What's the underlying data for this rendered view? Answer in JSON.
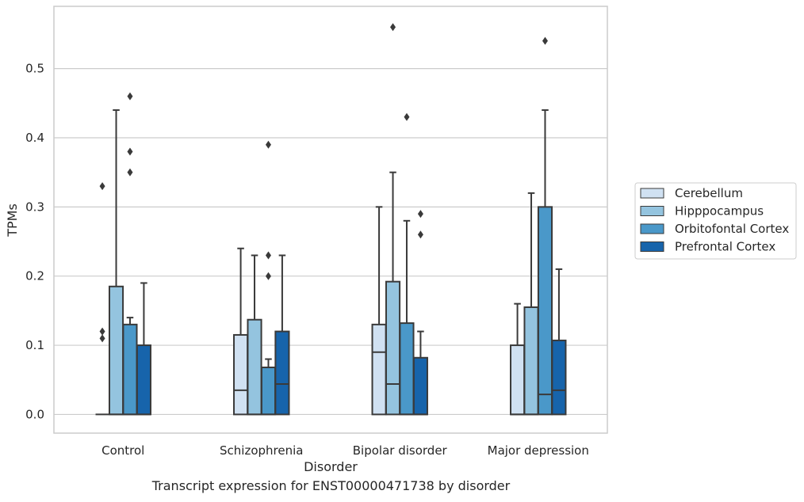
{
  "caption": "Transcript expression for ENST00000471738 by disorder",
  "chart_data": {
    "type": "box",
    "xlabel": "Disorder",
    "ylabel": "TPMs",
    "ylim": [
      -0.027,
      0.59
    ],
    "yticks": [
      0.0,
      0.1,
      0.2,
      0.3,
      0.4,
      0.5
    ],
    "ytick_labels": [
      "0.0",
      "0.1",
      "0.2",
      "0.3",
      "0.4",
      "0.5"
    ],
    "grid": "horizontal",
    "legend_position": "right",
    "categories": [
      "Control",
      "Schizophrenia",
      "Bipolar disorder",
      "Major depression"
    ],
    "series": [
      {
        "name": "Cerebellum",
        "color": "#d0e1f2",
        "boxes": [
          {
            "q1": 0.0,
            "median": 0.0,
            "q3": 0.0,
            "whisker_low": 0.0,
            "whisker_high": 0.0,
            "outliers": [
              0.33,
              0.12,
              0.11
            ]
          },
          {
            "q1": 0.0,
            "median": 0.035,
            "q3": 0.115,
            "whisker_low": 0.0,
            "whisker_high": 0.24,
            "outliers": []
          },
          {
            "q1": 0.0,
            "median": 0.09,
            "q3": 0.13,
            "whisker_low": 0.0,
            "whisker_high": 0.3,
            "outliers": []
          },
          {
            "q1": 0.0,
            "median": 0.0,
            "q3": 0.1,
            "whisker_low": 0.0,
            "whisker_high": 0.16,
            "outliers": []
          }
        ]
      },
      {
        "name": "Hipppocampus",
        "color": "#94c4df",
        "boxes": [
          {
            "q1": 0.0,
            "median": 0.0,
            "q3": 0.185,
            "whisker_low": 0.0,
            "whisker_high": 0.44,
            "outliers": []
          },
          {
            "q1": 0.0,
            "median": 0.0,
            "q3": 0.137,
            "whisker_low": 0.0,
            "whisker_high": 0.23,
            "outliers": []
          },
          {
            "q1": 0.0,
            "median": 0.044,
            "q3": 0.192,
            "whisker_low": 0.0,
            "whisker_high": 0.35,
            "outliers": [
              0.56
            ]
          },
          {
            "q1": 0.0,
            "median": 0.0,
            "q3": 0.155,
            "whisker_low": 0.0,
            "whisker_high": 0.32,
            "outliers": []
          }
        ]
      },
      {
        "name": "Orbitofontal Cortex",
        "color": "#4a98c9",
        "boxes": [
          {
            "q1": 0.0,
            "median": 0.0,
            "q3": 0.13,
            "whisker_low": 0.0,
            "whisker_high": 0.14,
            "outliers": [
              0.46,
              0.38,
              0.35
            ]
          },
          {
            "q1": 0.0,
            "median": 0.0,
            "q3": 0.068,
            "whisker_low": 0.0,
            "whisker_high": 0.08,
            "outliers": [
              0.39,
              0.23,
              0.2
            ]
          },
          {
            "q1": 0.0,
            "median": 0.0,
            "q3": 0.132,
            "whisker_low": 0.0,
            "whisker_high": 0.28,
            "outliers": [
              0.43
            ]
          },
          {
            "q1": 0.0,
            "median": 0.029,
            "q3": 0.3,
            "whisker_low": 0.0,
            "whisker_high": 0.44,
            "outliers": [
              0.54
            ]
          }
        ]
      },
      {
        "name": "Prefrontal Cortex",
        "color": "#1764ab",
        "boxes": [
          {
            "q1": 0.0,
            "median": 0.0,
            "q3": 0.1,
            "whisker_low": 0.0,
            "whisker_high": 0.19,
            "outliers": []
          },
          {
            "q1": 0.0,
            "median": 0.044,
            "q3": 0.12,
            "whisker_low": 0.0,
            "whisker_high": 0.23,
            "outliers": []
          },
          {
            "q1": 0.0,
            "median": 0.0,
            "q3": 0.082,
            "whisker_low": 0.0,
            "whisker_high": 0.12,
            "outliers": [
              0.29,
              0.26
            ]
          },
          {
            "q1": 0.0,
            "median": 0.035,
            "q3": 0.107,
            "whisker_low": 0.0,
            "whisker_high": 0.21,
            "outliers": []
          }
        ]
      }
    ]
  }
}
